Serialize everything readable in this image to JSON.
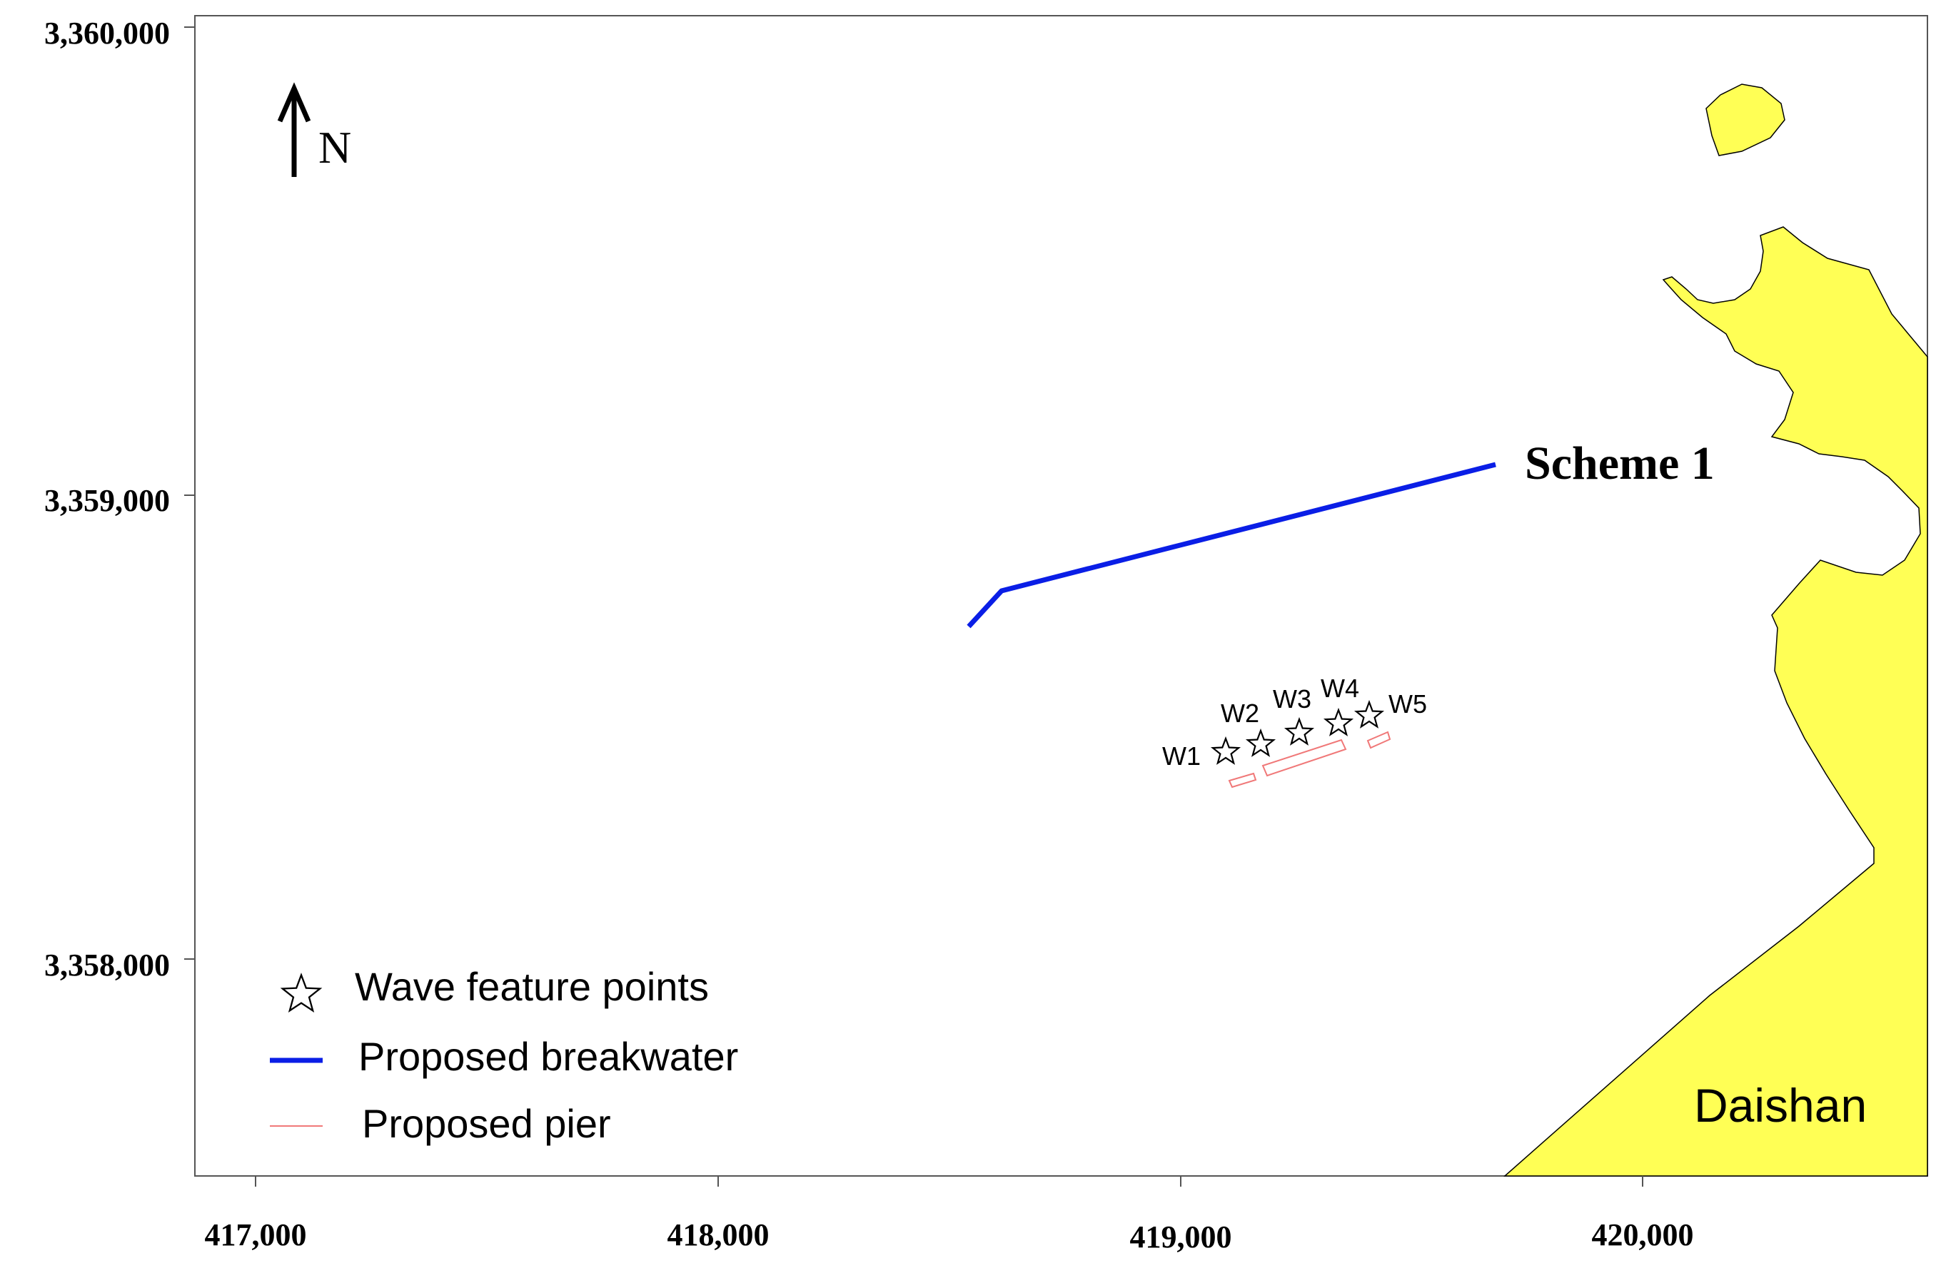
{
  "map": {
    "scheme_label": "Scheme 1",
    "north_label": "N",
    "place_label": "Daishan",
    "x_ticks": [
      "417,000",
      "418,000",
      "419,000",
      "420,000"
    ],
    "y_ticks": [
      "3,360,000",
      "3,359,000",
      "3,358,000"
    ],
    "wave_points": [
      "W1",
      "W2",
      "W3",
      "W4",
      "W5"
    ],
    "colors": {
      "land": "#ffff55",
      "breakwater": "#0a1ee6",
      "pier": "#f07878",
      "outline": "#000000"
    }
  },
  "legend": {
    "items": [
      {
        "label": "Wave feature points",
        "icon": "star-icon"
      },
      {
        "label": "Proposed breakwater",
        "icon": "blue-line-icon"
      },
      {
        "label": "Proposed pier",
        "icon": "red-line-icon"
      }
    ]
  }
}
